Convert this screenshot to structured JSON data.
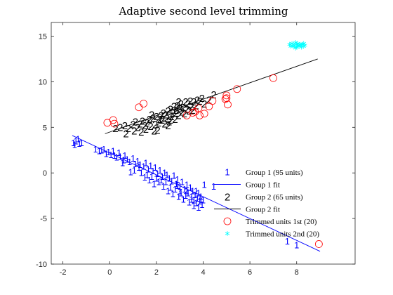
{
  "chart_data": {
    "type": "scatter",
    "title": "Adaptive second level trimming",
    "xlabel": "",
    "ylabel": "",
    "xlim": [
      -2.5,
      10.5
    ],
    "ylim": [
      -10,
      16.5
    ],
    "xticks": [
      -2,
      0,
      2,
      4,
      6,
      8
    ],
    "yticks": [
      -10,
      -5,
      0,
      5,
      10,
      15
    ],
    "grid": false,
    "legend_position": "right-center",
    "legend": [
      "Group 1 (95 units)",
      "Group 1 fit",
      "Group 2 (65 units)",
      "Group 2 fit",
      "Trimmed units 1st (20)",
      "Trimmed units 2nd (20)"
    ],
    "colors": {
      "group1": "#0000ff",
      "group2": "#000000",
      "trimmed_1st": "#ff0000",
      "trimmed_2nd": "#00ffff",
      "axis": "#262626"
    },
    "series": [
      {
        "name": "Group 1 (95 units)",
        "marker": "1",
        "color": "#0000ff",
        "points": [
          [
            -1.55,
            3.3
          ],
          [
            -1.45,
            3.5
          ],
          [
            -1.35,
            3.7
          ],
          [
            -1.2,
            3.3
          ],
          [
            -1.5,
            3.1
          ],
          [
            -1.3,
            3.2
          ],
          [
            -0.6,
            2.6
          ],
          [
            -0.45,
            2.4
          ],
          [
            -0.35,
            2.5
          ],
          [
            -0.15,
            2.1
          ],
          [
            -0.05,
            2.3
          ],
          [
            0.05,
            2.0
          ],
          [
            0.2,
            1.9
          ],
          [
            0.3,
            1.7
          ],
          [
            0.45,
            1.8
          ],
          [
            0.6,
            1.4
          ],
          [
            0.75,
            1.5
          ],
          [
            0.85,
            1.2
          ],
          [
            1.0,
            1.6
          ],
          [
            1.1,
            1.0
          ],
          [
            1.2,
            1.3
          ],
          [
            1.3,
            0.9
          ],
          [
            1.45,
            0.7
          ],
          [
            1.55,
            1.1
          ],
          [
            1.65,
            0.4
          ],
          [
            1.75,
            0.8
          ],
          [
            1.85,
            0.2
          ],
          [
            1.95,
            0.6
          ],
          [
            2.05,
            -0.1
          ],
          [
            2.15,
            0.3
          ],
          [
            2.25,
            -0.4
          ],
          [
            2.35,
            0.0
          ],
          [
            2.45,
            -0.2
          ],
          [
            2.55,
            -0.6
          ],
          [
            2.65,
            -0.9
          ],
          [
            2.75,
            -0.3
          ],
          [
            2.85,
            -1.2
          ],
          [
            2.9,
            -0.7
          ],
          [
            3.0,
            -1.5
          ],
          [
            3.1,
            -1.0
          ],
          [
            3.2,
            -1.8
          ],
          [
            3.3,
            -1.3
          ],
          [
            3.35,
            -2.2
          ],
          [
            3.45,
            -1.6
          ],
          [
            3.5,
            -2.6
          ],
          [
            3.55,
            -2.0
          ],
          [
            3.6,
            -3.0
          ],
          [
            3.65,
            -2.4
          ],
          [
            3.7,
            -3.3
          ],
          [
            3.75,
            -2.8
          ],
          [
            3.8,
            -2.2
          ],
          [
            3.85,
            -3.1
          ],
          [
            3.9,
            -2.6
          ],
          [
            3.95,
            -3.5
          ],
          [
            2.3,
            -1.5
          ],
          [
            2.5,
            -2.0
          ],
          [
            2.7,
            -2.3
          ],
          [
            2.95,
            -2.6
          ],
          [
            3.15,
            -2.9
          ],
          [
            3.4,
            -3.2
          ],
          [
            1.9,
            -1.2
          ],
          [
            0.9,
            0.1
          ],
          [
            1.05,
            0.3
          ],
          [
            1.5,
            -0.5
          ],
          [
            1.7,
            -0.8
          ],
          [
            2.1,
            -1.0
          ],
          [
            2.6,
            -1.6
          ],
          [
            3.05,
            -2.2
          ],
          [
            3.25,
            -2.5
          ],
          [
            3.6,
            -3.6
          ],
          [
            3.8,
            -3.8
          ],
          [
            0.4,
            2.2
          ],
          [
            0.65,
            1.9
          ],
          [
            1.35,
            0.0
          ],
          [
            1.6,
            -0.2
          ],
          [
            2.0,
            -0.6
          ],
          [
            2.4,
            -1.0
          ],
          [
            2.8,
            -1.8
          ],
          [
            3.0,
            -2.0
          ],
          [
            3.5,
            -2.9
          ],
          [
            3.7,
            -2.0
          ],
          [
            3.9,
            -2.9
          ],
          [
            4.0,
            -3.0
          ],
          [
            4.05,
            -1.3
          ],
          [
            4.45,
            -1.5
          ],
          [
            -0.25,
            2.6
          ],
          [
            0.15,
            2.4
          ],
          [
            0.55,
            1.1
          ],
          [
            1.25,
            0.6
          ],
          [
            1.8,
            -0.4
          ],
          [
            2.2,
            -0.8
          ],
          [
            2.9,
            -1.4
          ],
          [
            3.3,
            -2.0
          ],
          [
            7.6,
            -7.5
          ],
          [
            8.0,
            -7.9
          ]
        ]
      },
      {
        "name": "Group 1 fit",
        "type": "line",
        "color": "#0000ff",
        "x": [
          -1.6,
          9.0
        ],
        "y": [
          4.1,
          -8.6
        ]
      },
      {
        "name": "Group 2 (65 units)",
        "marker": "2",
        "color": "#000000",
        "points": [
          [
            0.25,
            4.9
          ],
          [
            0.45,
            5.0
          ],
          [
            0.65,
            5.2
          ],
          [
            0.8,
            4.9
          ],
          [
            1.0,
            5.3
          ],
          [
            1.1,
            5.6
          ],
          [
            1.2,
            5.0
          ],
          [
            1.3,
            5.4
          ],
          [
            1.4,
            5.7
          ],
          [
            1.5,
            5.2
          ],
          [
            1.6,
            5.5
          ],
          [
            1.7,
            5.9
          ],
          [
            1.75,
            5.1
          ],
          [
            1.85,
            6.0
          ],
          [
            1.95,
            5.3
          ],
          [
            2.0,
            6.2
          ],
          [
            2.05,
            4.7
          ],
          [
            2.1,
            5.5
          ],
          [
            2.2,
            6.3
          ],
          [
            2.25,
            5.8
          ],
          [
            2.3,
            6.6
          ],
          [
            2.35,
            5.4
          ],
          [
            2.45,
            6.0
          ],
          [
            2.5,
            6.8
          ],
          [
            2.55,
            5.6
          ],
          [
            2.6,
            7.0
          ],
          [
            2.65,
            6.2
          ],
          [
            2.7,
            6.6
          ],
          [
            2.75,
            7.3
          ],
          [
            2.8,
            5.9
          ],
          [
            2.85,
            6.9
          ],
          [
            2.9,
            7.4
          ],
          [
            2.95,
            6.3
          ],
          [
            3.0,
            7.1
          ],
          [
            3.05,
            7.6
          ],
          [
            3.1,
            6.7
          ],
          [
            3.15,
            7.2
          ],
          [
            3.2,
            6.5
          ],
          [
            3.3,
            7.0
          ],
          [
            3.35,
            7.6
          ],
          [
            3.4,
            6.8
          ],
          [
            3.5,
            7.3
          ],
          [
            3.6,
            7.8
          ],
          [
            3.7,
            7.4
          ],
          [
            3.75,
            8.0
          ],
          [
            3.85,
            7.9
          ],
          [
            3.95,
            8.2
          ],
          [
            4.05,
            7.6
          ],
          [
            4.25,
            8.0
          ],
          [
            4.45,
            8.6
          ],
          [
            1.35,
            4.5
          ],
          [
            1.55,
            4.8
          ],
          [
            1.9,
            4.6
          ],
          [
            2.15,
            5.9
          ],
          [
            2.4,
            6.4
          ],
          [
            2.6,
            5.8
          ],
          [
            2.85,
            6.6
          ],
          [
            3.25,
            7.8
          ],
          [
            3.55,
            6.9
          ],
          [
            1.05,
            4.6
          ],
          [
            0.7,
            4.3
          ],
          [
            2.95,
            7.8
          ],
          [
            2.5,
            5.2
          ],
          [
            3.45,
            7.9
          ],
          [
            1.8,
            6.4
          ]
        ]
      },
      {
        "name": "Group 2 fit",
        "type": "line",
        "color": "#000000",
        "x": [
          -0.2,
          8.9
        ],
        "y": [
          4.3,
          12.5
        ]
      },
      {
        "name": "Trimmed units 1st (20)",
        "marker": "circle",
        "color": "#ff0000",
        "points": [
          [
            -0.1,
            5.5
          ],
          [
            0.15,
            5.8
          ],
          [
            0.2,
            5.4
          ],
          [
            1.25,
            7.2
          ],
          [
            1.45,
            7.6
          ],
          [
            3.3,
            6.3
          ],
          [
            3.55,
            6.6
          ],
          [
            3.65,
            6.7
          ],
          [
            3.8,
            7.1
          ],
          [
            3.85,
            6.3
          ],
          [
            4.05,
            6.5
          ],
          [
            4.25,
            7.3
          ],
          [
            4.4,
            7.9
          ],
          [
            4.95,
            8.1
          ],
          [
            5.0,
            8.5
          ],
          [
            5.05,
            7.5
          ],
          [
            5.0,
            8.2
          ],
          [
            5.45,
            9.2
          ],
          [
            7.0,
            10.4
          ],
          [
            8.95,
            -7.8
          ]
        ]
      },
      {
        "name": "Trimmed units 2nd (20)",
        "marker": "asterisk",
        "color": "#00ffff",
        "points": [
          [
            7.7,
            14.1
          ],
          [
            7.8,
            14.2
          ],
          [
            7.85,
            13.9
          ],
          [
            7.9,
            14.0
          ],
          [
            7.95,
            14.3
          ],
          [
            8.0,
            13.8
          ],
          [
            8.0,
            14.1
          ],
          [
            8.05,
            14.2
          ],
          [
            8.1,
            13.9
          ],
          [
            8.1,
            14.0
          ],
          [
            8.15,
            14.1
          ],
          [
            8.2,
            13.8
          ],
          [
            8.2,
            14.0
          ],
          [
            8.25,
            14.1
          ],
          [
            8.3,
            13.9
          ],
          [
            8.3,
            14.2
          ],
          [
            7.75,
            13.9
          ],
          [
            7.95,
            13.7
          ],
          [
            8.05,
            14.0
          ],
          [
            8.35,
            14.0
          ]
        ]
      }
    ]
  }
}
